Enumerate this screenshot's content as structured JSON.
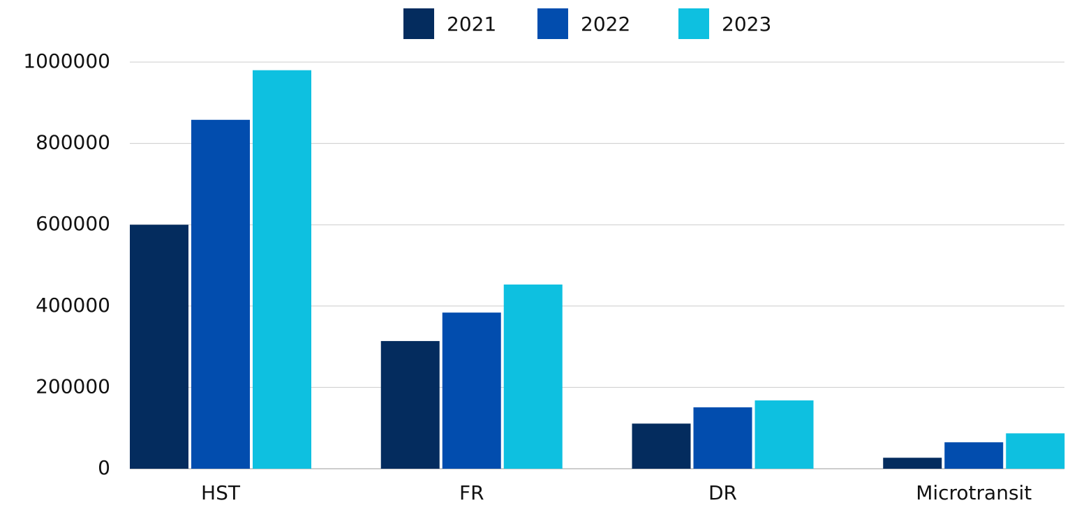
{
  "chart_data": {
    "type": "bar",
    "categories": [
      "HST",
      "FR",
      "DR",
      "Microtransit"
    ],
    "series": [
      {
        "name": "2021",
        "color": "#042c5e",
        "values": [
          600000,
          314000,
          111000,
          27000
        ]
      },
      {
        "name": "2022",
        "color": "#024dae",
        "values": [
          858000,
          384000,
          151000,
          65000
        ]
      },
      {
        "name": "2023",
        "color": "#0ec0e0",
        "values": [
          980000,
          453000,
          168000,
          87000
        ]
      }
    ],
    "ylim": [
      0,
      1000000
    ],
    "yticks": [
      0,
      200000,
      400000,
      600000,
      800000,
      1000000
    ],
    "grid": true,
    "legend": "top"
  }
}
